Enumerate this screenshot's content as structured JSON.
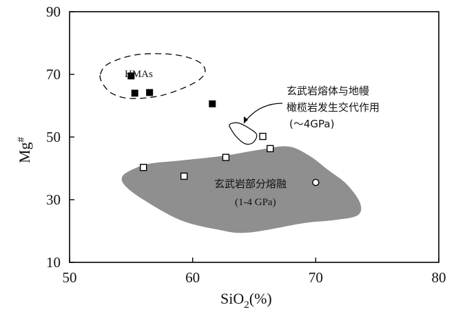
{
  "chart_data": {
    "type": "scatter",
    "xlabel": "SiO",
    "xlabel_sub": "2",
    "xlabel_unit": "(%)",
    "ylabel": "Mg",
    "ylabel_sup": "#",
    "xlim": [
      50,
      80
    ],
    "ylim": [
      10,
      90
    ],
    "xticks": [
      50,
      60,
      70,
      80
    ],
    "yticks": [
      10,
      30,
      50,
      70,
      90
    ],
    "grid": false,
    "series": [
      {
        "marker": "filled-square",
        "points": [
          [
            55.0,
            69.5
          ],
          [
            55.3,
            64.0
          ],
          [
            56.5,
            64.2
          ],
          [
            61.6,
            60.6
          ]
        ]
      },
      {
        "marker": "open-square",
        "points": [
          [
            56.0,
            40.3
          ],
          [
            59.3,
            37.5
          ],
          [
            62.7,
            43.5
          ],
          [
            65.7,
            50.2
          ],
          [
            66.3,
            46.3
          ]
        ]
      },
      {
        "marker": "open-circle",
        "points": [
          [
            70.0,
            35.5
          ]
        ]
      }
    ],
    "regions": [
      {
        "label": "HMAs",
        "style": "dashed-outline",
        "outline": [
          [
            52.5,
            70
          ],
          [
            53.2,
            73.5
          ],
          [
            55.5,
            76.3
          ],
          [
            58.5,
            76.3
          ],
          [
            60.5,
            74.0
          ],
          [
            61.0,
            70.5
          ],
          [
            60.0,
            67.0
          ],
          [
            57.5,
            63.3
          ],
          [
            55.0,
            62.3
          ],
          [
            53.5,
            63.8
          ],
          [
            52.7,
            67.0
          ]
        ]
      },
      {
        "label": "",
        "style": "solid-outline",
        "outline": [
          [
            63.0,
            54.0
          ],
          [
            63.7,
            54.5
          ],
          [
            64.5,
            53.0
          ],
          [
            65.2,
            50.8
          ],
          [
            64.9,
            48.2
          ],
          [
            64.3,
            47.8
          ],
          [
            63.7,
            49.5
          ],
          [
            63.2,
            52.0
          ]
        ]
      },
      {
        "label": "basalt-partial-melting",
        "style": "gray-fill",
        "outline": [
          [
            56.5,
            41.5
          ],
          [
            59.0,
            42.5
          ],
          [
            62.5,
            44.0
          ],
          [
            65.5,
            46.0
          ],
          [
            67.8,
            47.0
          ],
          [
            69.5,
            44.0
          ],
          [
            71.0,
            39.5
          ],
          [
            72.5,
            35.0
          ],
          [
            73.6,
            29.0
          ],
          [
            73.4,
            25.0
          ],
          [
            71.5,
            23.5
          ],
          [
            69.0,
            22.5
          ],
          [
            64.5,
            19.5
          ],
          [
            62.0,
            20.5
          ],
          [
            59.0,
            23.5
          ],
          [
            56.0,
            30.0
          ],
          [
            54.5,
            34.5
          ],
          [
            54.3,
            37.5
          ],
          [
            55.2,
            39.8
          ]
        ]
      }
    ],
    "annotations": {
      "hmas": "HMAs",
      "reaction_line1": "玄武岩熔体与地幔",
      "reaction_line2": "橄榄岩发生交代作用",
      "reaction_line3": "(～4GPa)",
      "melting_line1": "玄武岩部分熔融",
      "melting_line2": "(1-4 GPa)"
    },
    "colors": {
      "region_fill": "#8f8f8f",
      "marker": "#000000",
      "axis": "#000000"
    }
  }
}
